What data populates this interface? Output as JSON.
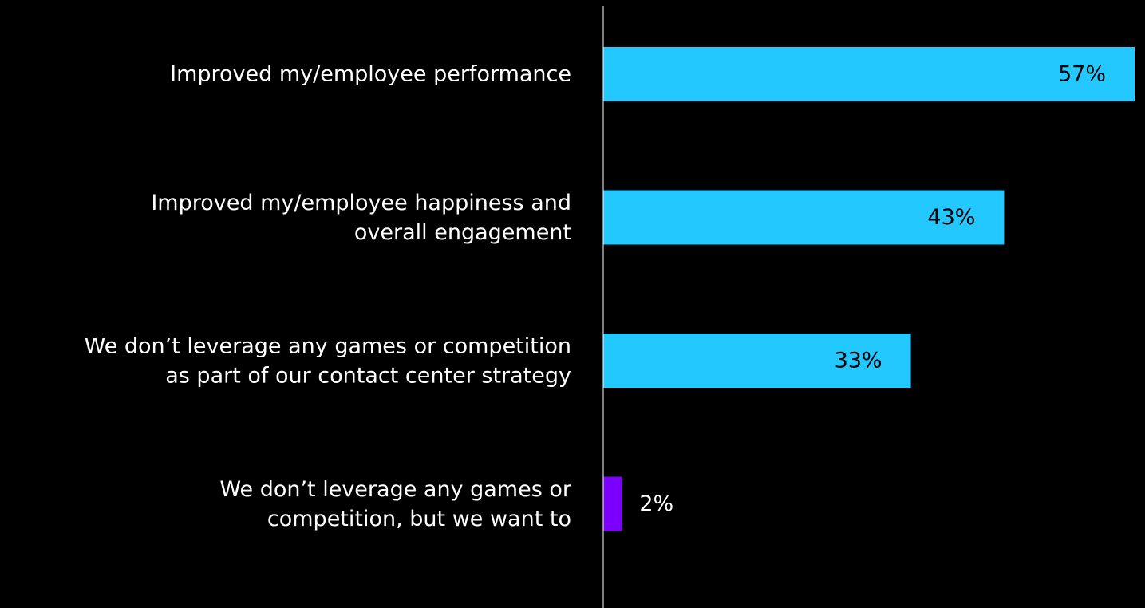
{
  "chart_data": {
    "type": "bar",
    "orientation": "horizontal",
    "categories": [
      [
        "Improved my/employee performance"
      ],
      [
        "Improved my/employee happiness and",
        "overall engagement"
      ],
      [
        "We don’t leverage any games or competition",
        "as part of our contact center strategy"
      ],
      [
        "We don’t leverage any games or",
        "competition, but we want to"
      ]
    ],
    "values": [
      57,
      43,
      33,
      2
    ],
    "value_labels": [
      "57%",
      "43%",
      "33%",
      "2%"
    ],
    "colors": [
      "#22c8ff",
      "#22c8ff",
      "#22c8ff",
      "#7b00ff"
    ],
    "xlim": [
      0,
      57
    ],
    "title": "",
    "xlabel": "",
    "ylabel": "",
    "grid": false,
    "legend": "none"
  }
}
